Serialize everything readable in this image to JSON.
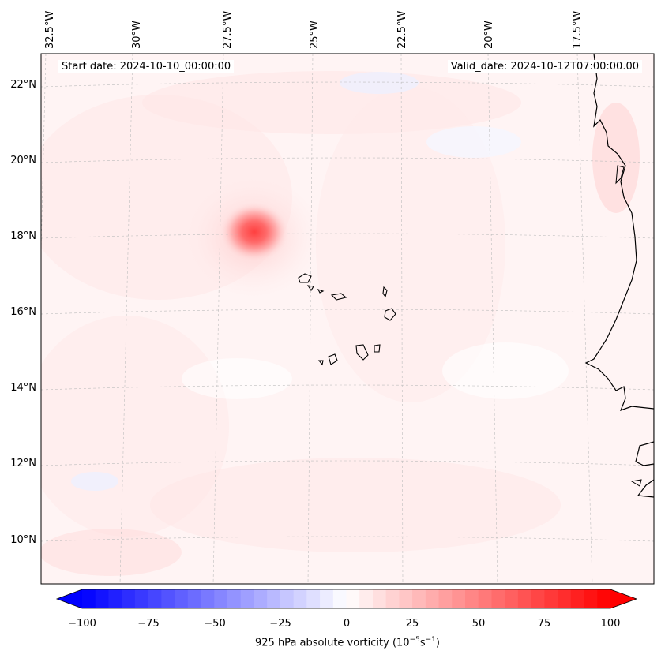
{
  "map": {
    "start_date": "Start date: 2024-10-10_00:00:00",
    "valid_date": "Valid_date: 2024-10-12T07:00:00.00",
    "lon_labels": [
      "32.5°W",
      "30°W",
      "27.5°W",
      "25°W",
      "22.5°W",
      "20°W",
      "17.5°W"
    ],
    "lat_labels": [
      "22°N",
      "20°N",
      "18°N",
      "16°N",
      "14°N",
      "12°N",
      "10°N"
    ],
    "colorbar": {
      "label": "925 hPa absolute vorticity (10",
      "label_sup1": "−5",
      "label_mid": "s",
      "label_sup2": "−1",
      "label_end": ")",
      "ticks": [
        "−100",
        "−75",
        "−50",
        "−25",
        "0",
        "25",
        "50",
        "75",
        "100"
      ],
      "min_color": "#0000ff",
      "mid_color": "#ffffff",
      "max_color": "#ff0000"
    }
  }
}
